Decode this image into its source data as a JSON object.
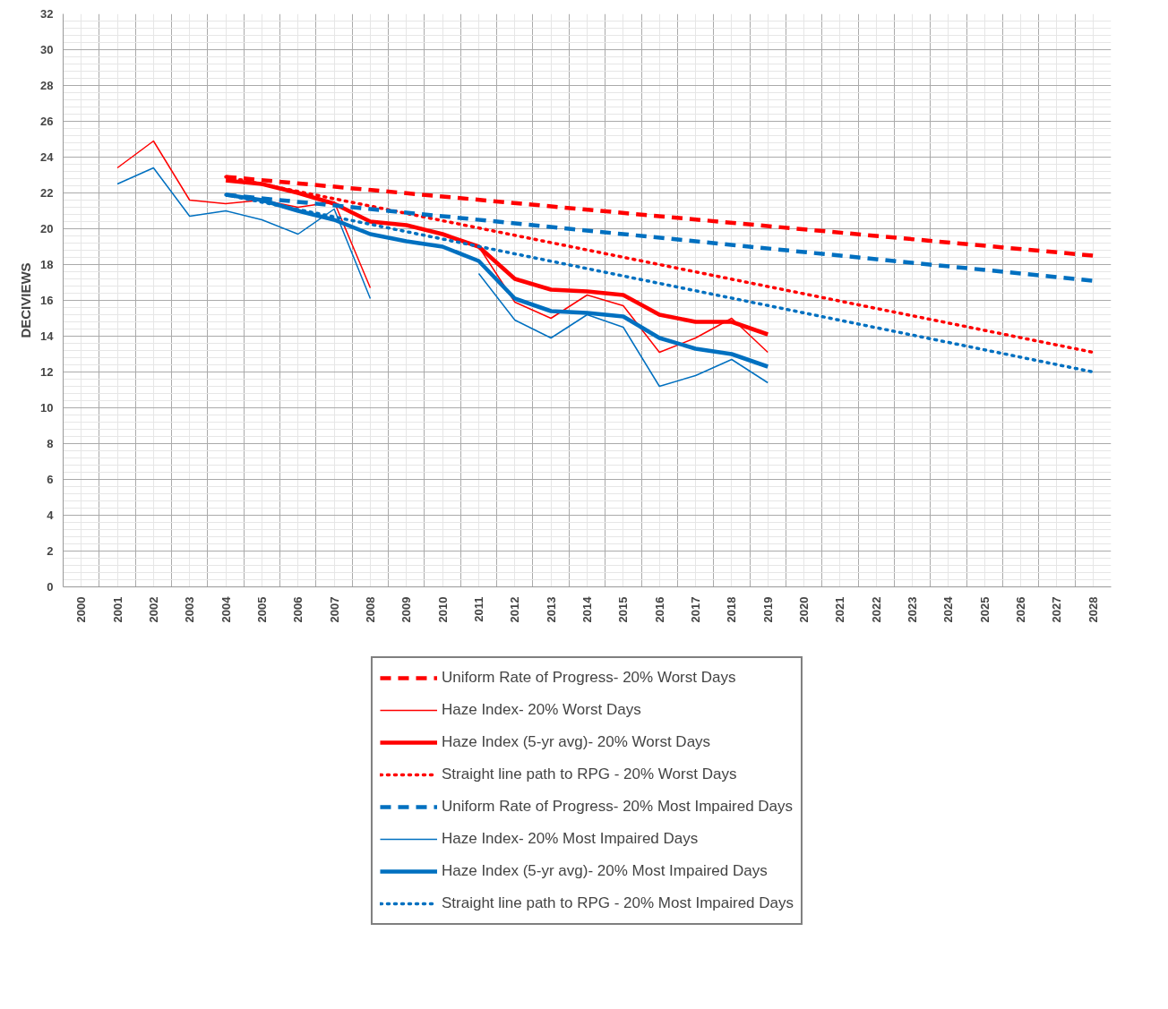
{
  "chart_data": {
    "type": "line",
    "ylabel": "DECIVIEWS",
    "x": [
      2001,
      2002,
      2003,
      2004,
      2005,
      2006,
      2007,
      2008,
      2009,
      2010,
      2011,
      2012,
      2013,
      2014,
      2015,
      2016,
      2017,
      2018,
      2019
    ],
    "xlim": [
      1999.5,
      2028.5
    ],
    "xticks": [
      2000,
      2001,
      2002,
      2003,
      2004,
      2005,
      2006,
      2007,
      2008,
      2009,
      2010,
      2011,
      2012,
      2013,
      2014,
      2015,
      2016,
      2017,
      2018,
      2019,
      2020,
      2021,
      2022,
      2023,
      2024,
      2025,
      2026,
      2027,
      2028
    ],
    "ylim": [
      0,
      32
    ],
    "yticks": [
      0,
      2,
      4,
      6,
      8,
      10,
      12,
      14,
      16,
      18,
      20,
      22,
      24,
      26,
      28,
      30,
      32
    ],
    "grid": true,
    "legend": "bottom",
    "series": [
      {
        "name": "Uniform Rate of Progress- 20% Worst Days",
        "color": "#ff0000",
        "line_style": "dashed",
        "x": [
          2004,
          2028
        ],
        "values": [
          22.9,
          18.5
        ]
      },
      {
        "name": "Haze Index- 20% Worst Days",
        "color": "#ff0000",
        "line_style": "solid",
        "values": [
          23.4,
          24.9,
          21.6,
          21.4,
          21.6,
          21.2,
          21.5,
          16.7,
          null,
          null,
          19.0,
          15.9,
          15.0,
          16.3,
          15.7,
          13.1,
          13.9,
          15.0,
          13.1
        ]
      },
      {
        "name": "Haze Index (5-yr avg)- 20% Worst Days",
        "color": "#ff0000",
        "line_style": "solid",
        "x": [
          2004,
          2005,
          2006,
          2007,
          2008,
          2009,
          2010,
          2011,
          2012,
          2013,
          2014,
          2015,
          2016,
          2017,
          2018,
          2019
        ],
        "values": [
          22.7,
          22.5,
          22.0,
          21.4,
          20.4,
          20.2,
          19.7,
          19.0,
          17.2,
          16.6,
          16.5,
          16.3,
          15.2,
          14.8,
          14.8,
          14.1
        ]
      },
      {
        "name": "Straight line path to RPG - 20% Worst Days",
        "color": "#ff0000",
        "line_style": "dotted",
        "x": [
          2004,
          2028
        ],
        "values": [
          22.9,
          13.1
        ]
      },
      {
        "name": "Uniform Rate of Progress- 20% Most Impaired Days",
        "color": "#0070c0",
        "line_style": "dashed",
        "x": [
          2004,
          2028
        ],
        "values": [
          21.9,
          17.1
        ]
      },
      {
        "name": "Haze Index- 20% Most Impaired Days",
        "color": "#0070c0",
        "line_style": "solid",
        "values": [
          22.5,
          23.4,
          20.7,
          21.0,
          20.5,
          19.7,
          21.1,
          16.1,
          null,
          null,
          17.5,
          14.9,
          13.9,
          15.2,
          14.5,
          11.2,
          11.8,
          12.7,
          11.4
        ]
      },
      {
        "name": "Haze Index (5-yr avg)- 20% Most Impaired Days",
        "color": "#0070c0",
        "line_style": "solid",
        "x": [
          2004,
          2005,
          2006,
          2007,
          2008,
          2009,
          2010,
          2011,
          2012,
          2013,
          2014,
          2015,
          2016,
          2017,
          2018,
          2019
        ],
        "values": [
          21.9,
          21.6,
          21.0,
          20.5,
          19.7,
          19.3,
          19.0,
          18.2,
          16.1,
          15.4,
          15.3,
          15.1,
          13.9,
          13.3,
          13.0,
          12.3
        ]
      },
      {
        "name": "Straight line path to RPG - 20% Most Impaired Days",
        "color": "#0070c0",
        "line_style": "dotted",
        "x": [
          2004,
          2028
        ],
        "values": [
          21.9,
          12.0
        ]
      }
    ]
  }
}
